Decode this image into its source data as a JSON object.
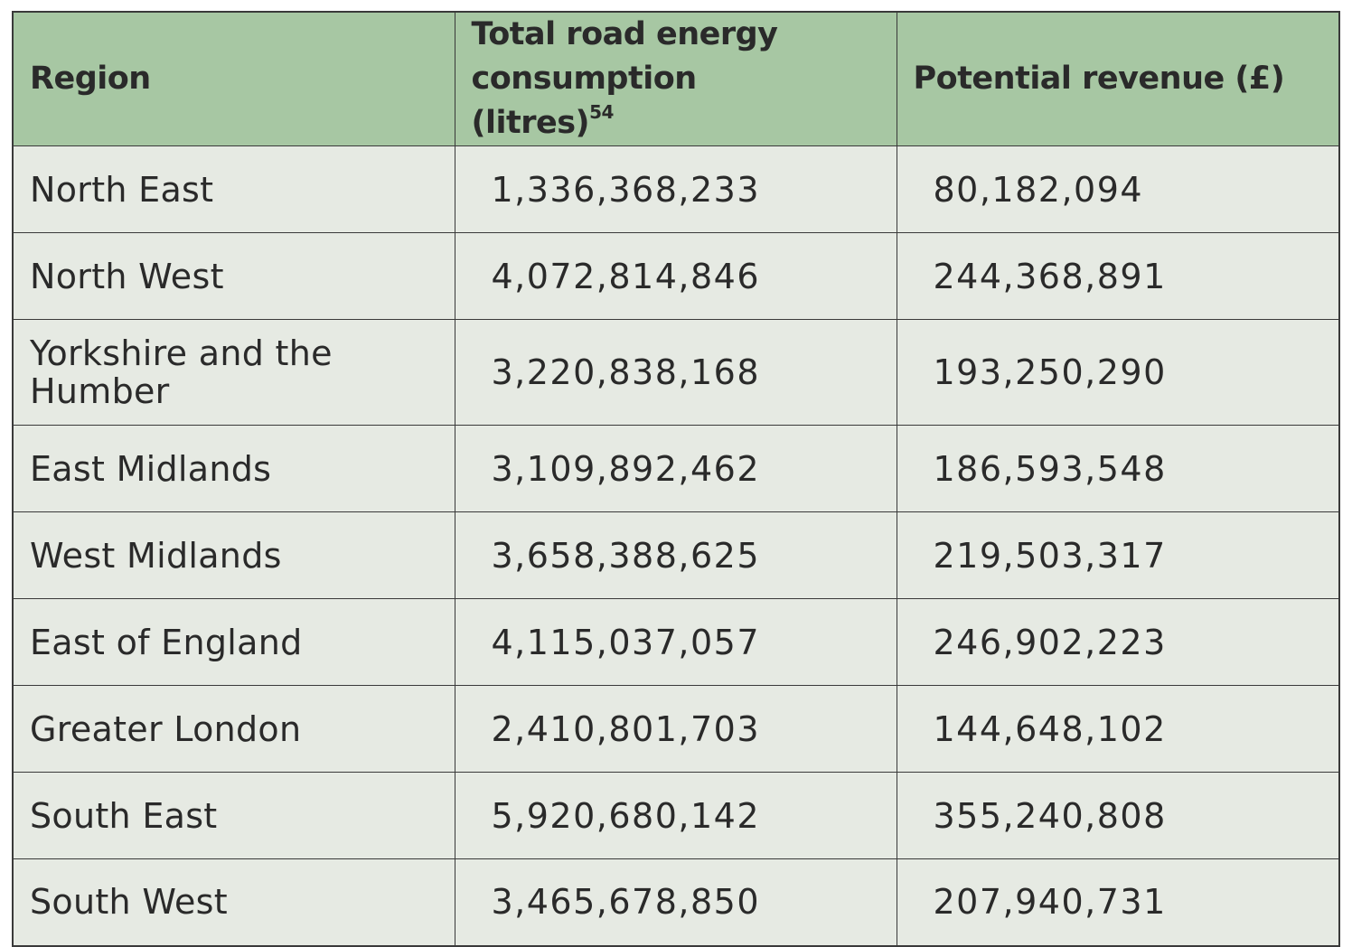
{
  "table": {
    "headers": {
      "region": "Region",
      "consumption": "Total road energy consumption (litres)",
      "consumption_note": "54",
      "revenue": "Potential revenue (£)"
    },
    "rows": [
      {
        "region": "North East",
        "litres": "1,336,368,233",
        "revenue": "80,182,094"
      },
      {
        "region": "North West",
        "litres": "4,072,814,846",
        "revenue": "244,368,891"
      },
      {
        "region": "Yorkshire and the Humber",
        "litres": "3,220,838,168",
        "revenue": "193,250,290"
      },
      {
        "region": "East Midlands",
        "litres": "3,109,892,462",
        "revenue": "186,593,548"
      },
      {
        "region": "West Midlands",
        "litres": "3,658,388,625",
        "revenue": "219,503,317"
      },
      {
        "region": "East of England",
        "litres": "4,115,037,057",
        "revenue": "246,902,223"
      },
      {
        "region": "Greater London",
        "litres": "2,410,801,703",
        "revenue": "144,648,102"
      },
      {
        "region": "South East",
        "litres": "5,920,680,142",
        "revenue": "355,240,808"
      },
      {
        "region": "South West",
        "litres": "3,465,678,850",
        "revenue": "207,940,731"
      }
    ]
  },
  "colors": {
    "header_background": "#a7c7a3",
    "cell_background": "#e6eae3",
    "border": "#3a3a3a",
    "text": "#2a2a2a"
  }
}
